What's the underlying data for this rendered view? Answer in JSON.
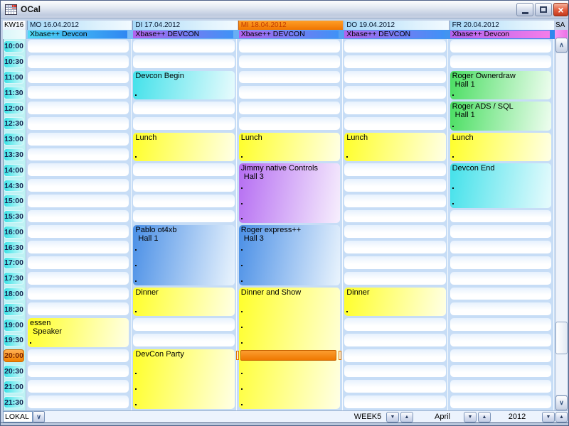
{
  "window": {
    "title": "OCal"
  },
  "icons": {
    "app_icon": "calendar-grid-icon",
    "close": "×",
    "combo_arrow": "∨",
    "scroll_up": "∧",
    "scroll_down": "∨",
    "spin_down": "▼",
    "spin_up": "▲"
  },
  "header": {
    "week_label": "KW16",
    "days": [
      {
        "label": "MO 16.04.2012",
        "today": false
      },
      {
        "label": "DI 17.04.2012",
        "today": false
      },
      {
        "label": "MI 18.04.2012",
        "today": true
      },
      {
        "label": "DO 19.04.2012",
        "today": false
      },
      {
        "label": "FR 20.04.2012",
        "today": false
      }
    ],
    "next_day_label": "SA"
  },
  "allday_events": [
    {
      "day": 0,
      "text": "Xbase++ Devcon",
      "color": "cyan_blue"
    },
    {
      "day": 1,
      "text": "Xbase++ DEVCON",
      "color": "purple_blue"
    },
    {
      "day": 2,
      "text": "Xbase++ DEVCON",
      "color": "purple_blue"
    },
    {
      "day": 3,
      "text": "Xbase++ DEVCON",
      "color": "purple_blue"
    },
    {
      "day": 4,
      "text": "Xbase++ Devcon",
      "color": "purple_pink"
    }
  ],
  "time_labels": [
    "10:00",
    "10:30",
    "11:00",
    "11:30",
    "12:00",
    "12:30",
    "13:00",
    "13:30",
    "14:00",
    "14:30",
    "15:00",
    "15:30",
    "16:00",
    "16:30",
    "17:00",
    "17:30",
    "18:00",
    "18:30",
    "19:00",
    "19:30",
    "20:00",
    "20:30",
    "21:00",
    "21:30"
  ],
  "current_time": {
    "label": "20:00",
    "day_index": 2
  },
  "events": [
    {
      "day": 0,
      "title": "essen",
      "location": "Speaker",
      "start": "19:00",
      "end": "20:00",
      "color": "yellow"
    },
    {
      "day": 1,
      "title": "Devcon Begin",
      "location": "",
      "start": "11:00",
      "end": "12:00",
      "color": "cyan"
    },
    {
      "day": 1,
      "title": "Lunch",
      "location": "",
      "start": "13:00",
      "end": "14:00",
      "color": "yellow"
    },
    {
      "day": 1,
      "title": "Pablo ot4xb",
      "location": "Hall 1",
      "start": "16:00",
      "end": "18:00",
      "color": "blue"
    },
    {
      "day": 1,
      "title": "Dinner",
      "location": "",
      "start": "18:00",
      "end": "19:00",
      "color": "yellow"
    },
    {
      "day": 1,
      "title": "DevCon Party",
      "location": "",
      "start": "20:00",
      "end": "22:00",
      "color": "yellow"
    },
    {
      "day": 2,
      "title": "Lunch",
      "location": "",
      "start": "13:00",
      "end": "14:00",
      "color": "yellow"
    },
    {
      "day": 2,
      "title": "Jimmy native Controls",
      "location": "Hall 3",
      "start": "14:00",
      "end": "16:00",
      "color": "purple"
    },
    {
      "day": 2,
      "title": "Roger express++",
      "location": "Hall 3",
      "start": "16:00",
      "end": "18:00",
      "color": "blue"
    },
    {
      "day": 2,
      "title": "Dinner and Show",
      "location": "",
      "start": "18:00",
      "end": "22:00",
      "color": "yellow"
    },
    {
      "day": 3,
      "title": "Lunch",
      "location": "",
      "start": "13:00",
      "end": "14:00",
      "color": "yellow"
    },
    {
      "day": 3,
      "title": "Dinner",
      "location": "",
      "start": "18:00",
      "end": "19:00",
      "color": "yellow"
    },
    {
      "day": 4,
      "title": "Roger Ownerdraw",
      "location": "Hall 1",
      "start": "11:00",
      "end": "12:00",
      "color": "green"
    },
    {
      "day": 4,
      "title": "Roger ADS / SQL",
      "location": "Hall 1",
      "start": "12:00",
      "end": "13:00",
      "color": "green"
    },
    {
      "day": 4,
      "title": "Lunch",
      "location": "",
      "start": "13:00",
      "end": "14:00",
      "color": "yellow"
    },
    {
      "day": 4,
      "title": "Devcon End",
      "location": "",
      "start": "14:00",
      "end": "15:30",
      "color": "cyan"
    }
  ],
  "colors": {
    "events": {
      "yellow": [
        "#ffff2a",
        "#ffffe6"
      ],
      "cyan": [
        "#43e1ea",
        "#e8fbfd"
      ],
      "blue": [
        "#4a8fe6",
        "#eaf4fd"
      ],
      "purple": [
        "#b56df2",
        "#f7effd"
      ],
      "green": [
        "#4ade62",
        "#effdf0"
      ]
    },
    "allday": {
      "cyan_blue": [
        "#4fd9f4",
        "#2f87f2"
      ],
      "purple_blue": [
        "#b163ee",
        "#3f92f6"
      ],
      "purple_pink": [
        "#b163ee",
        "#f47de9"
      ]
    },
    "today_header_orange": "#f57a00",
    "current_time_orange": "#ef7800"
  },
  "bottombar": {
    "source_label": "LOKAL",
    "week_label": "WEEK5",
    "month_label": "April",
    "year_label": "2012"
  }
}
